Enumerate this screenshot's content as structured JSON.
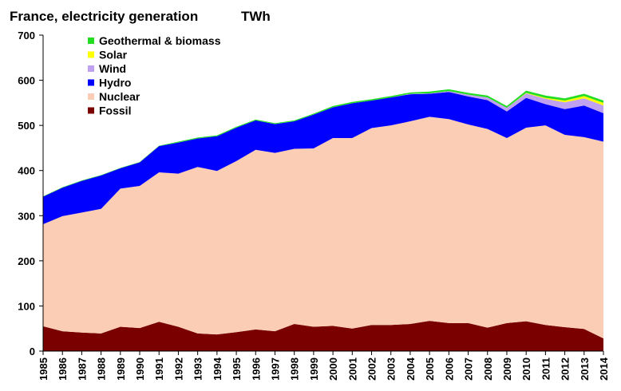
{
  "chart_data": {
    "type": "area",
    "title": "France, electricity generation",
    "unit": "TWh",
    "x": [
      "1985",
      "1986",
      "1987",
      "1988",
      "1989",
      "1990",
      "1991",
      "1992",
      "1993",
      "1994",
      "1995",
      "1996",
      "1997",
      "1998",
      "1999",
      "2000",
      "2001",
      "2002",
      "2003",
      "2004",
      "2005",
      "2006",
      "2007",
      "2008",
      "2009",
      "2010",
      "2011",
      "2012",
      "2013",
      "2014"
    ],
    "ylim": [
      0,
      700
    ],
    "yticks": [
      0,
      100,
      200,
      300,
      400,
      500,
      600,
      700
    ],
    "grid": false,
    "legend_position": "top-left",
    "series": [
      {
        "name": "Fossil",
        "color": "#7a0000",
        "values": [
          55,
          44,
          41,
          39,
          54,
          51,
          65,
          54,
          39,
          37,
          42,
          48,
          44,
          60,
          54,
          56,
          50,
          58,
          58,
          60,
          67,
          62,
          62,
          52,
          62,
          66,
          58,
          53,
          49,
          28
        ]
      },
      {
        "name": "Nuclear",
        "color": "#fbcdb4",
        "values": [
          226,
          255,
          266,
          276,
          306,
          315,
          331,
          339,
          369,
          362,
          379,
          398,
          395,
          388,
          395,
          416,
          422,
          436,
          442,
          449,
          452,
          452,
          440,
          440,
          410,
          429,
          442,
          426,
          425,
          436
        ]
      },
      {
        "name": "Hydro",
        "color": "#0000ff",
        "values": [
          61,
          63,
          70,
          74,
          45,
          52,
          58,
          69,
          63,
          77,
          74,
          65,
          64,
          61,
          75,
          68,
          77,
          61,
          62,
          60,
          51,
          60,
          62,
          64,
          59,
          66,
          47,
          57,
          70,
          63
        ]
      },
      {
        "name": "Wind",
        "color": "#c0a0f0",
        "values": [
          0,
          0,
          0,
          0,
          0,
          0,
          0,
          0,
          0,
          0,
          0,
          0,
          0,
          0,
          0,
          0,
          0,
          0,
          0,
          1,
          1,
          2,
          4,
          6,
          8,
          10,
          12,
          15,
          16,
          17
        ]
      },
      {
        "name": "Solar",
        "color": "#ffff00",
        "values": [
          0,
          0,
          0,
          0,
          0,
          0,
          0,
          0,
          0,
          0,
          0,
          0,
          0,
          0,
          0,
          0,
          0,
          0,
          0,
          0,
          0,
          0,
          0,
          0,
          0,
          1,
          2,
          4,
          5,
          6
        ]
      },
      {
        "name": "Geothermal & biomass",
        "color": "#22dd22",
        "values": [
          1,
          1,
          1,
          1,
          1,
          1,
          1,
          2,
          2,
          2,
          2,
          2,
          2,
          2,
          2,
          3,
          3,
          3,
          3,
          3,
          4,
          4,
          4,
          4,
          4,
          5,
          5,
          5,
          5,
          5
        ]
      }
    ]
  }
}
